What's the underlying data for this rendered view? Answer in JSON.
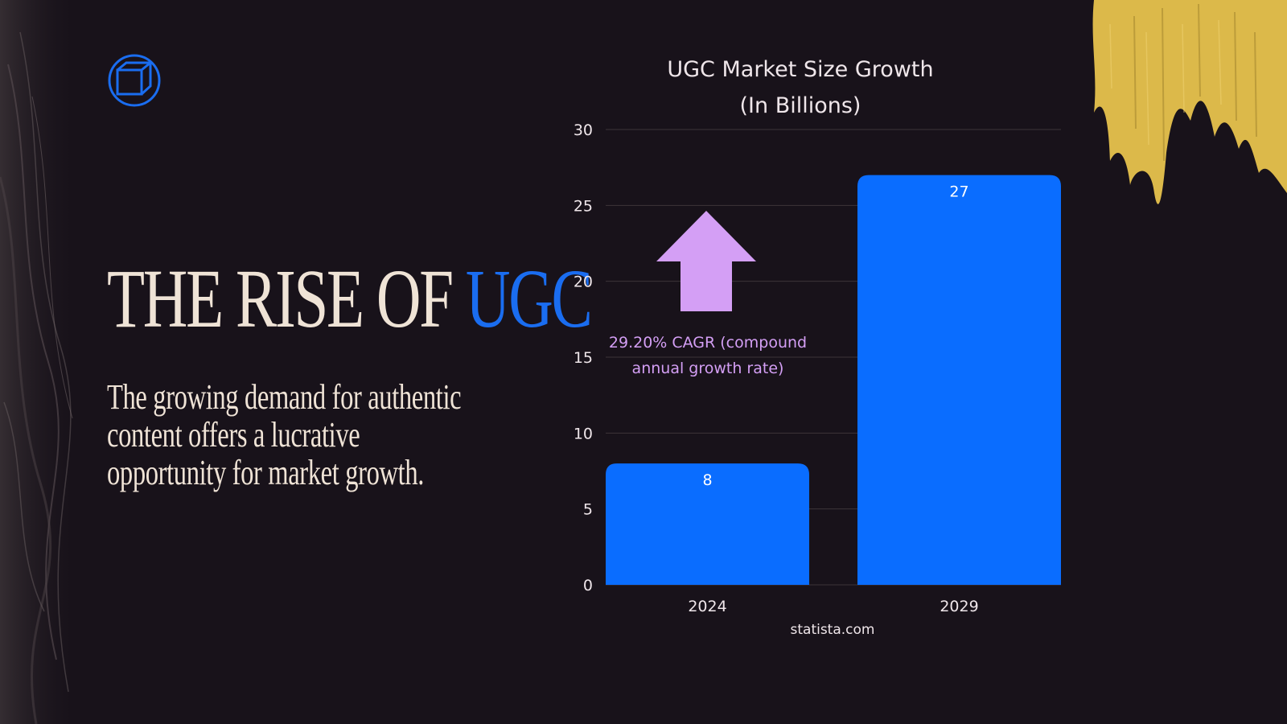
{
  "slide": {
    "headline_main": "THE RISE OF ",
    "headline_accent": "UGC",
    "subtext_lines": [
      "The growing demand for authentic",
      "content offers a lucrative",
      "opportunity for market growth."
    ],
    "source": "statista.com",
    "annotation_lines": [
      "29.20% CAGR (compound",
      "annual growth rate)"
    ],
    "logo_icon": "cube-icon",
    "arrow_icon": "arrow-up-icon",
    "colors": {
      "background": "#18121a",
      "accent_blue": "#1a6df0",
      "bar_blue": "#0a6dff",
      "cream": "#efe3d6",
      "lavender": "#d49ff5",
      "gold": "#dcb94a"
    }
  },
  "chart_data": {
    "type": "bar",
    "title": "UGC Market Size Growth",
    "subtitle": "(In Billions)",
    "categories": [
      "2024",
      "2029"
    ],
    "values": [
      8,
      27
    ],
    "value_labels": [
      "8",
      "27"
    ],
    "ylim": [
      0,
      30
    ],
    "yticks": [
      0,
      5,
      10,
      15,
      20,
      25,
      30
    ],
    "xlabel": "",
    "ylabel": "",
    "grid": true,
    "legend": "none"
  }
}
